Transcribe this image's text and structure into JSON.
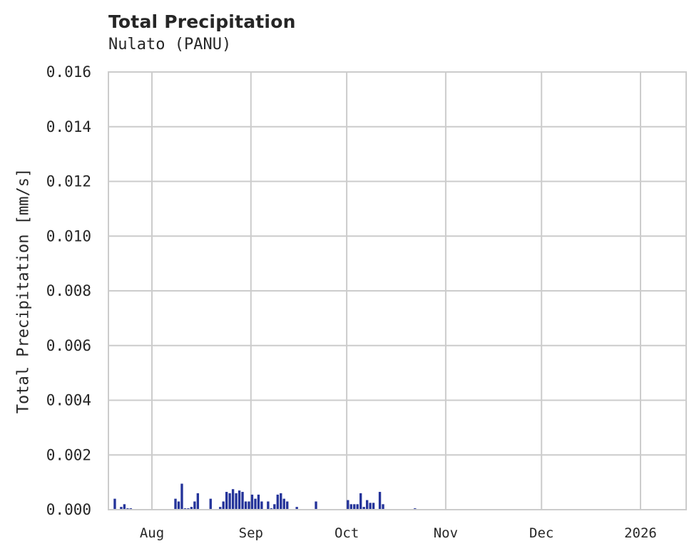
{
  "chart": {
    "title": "Total Precipitation",
    "subtitle": "Nulato (PANU)",
    "ylabel": "Total Precipitation [mm/s]",
    "xlabel": ""
  },
  "colors": {
    "bar": "#25349a",
    "grid": "#cccccc",
    "spine": "#cccccc",
    "text": "#262626"
  },
  "chart_data": {
    "type": "bar",
    "title": "Total Precipitation",
    "subtitle": "Nulato (PANU)",
    "xlabel": "",
    "ylabel": "Total Precipitation [mm/s]",
    "ylim": [
      0.0,
      0.016
    ],
    "yticks": [
      "0.000",
      "0.002",
      "0.004",
      "0.006",
      "0.008",
      "0.010",
      "0.012",
      "0.014",
      "0.016"
    ],
    "xticks": [
      "Aug",
      "Sep",
      "Oct",
      "Nov",
      "Dec",
      "2026"
    ],
    "xrange": [
      "2025-07-17",
      "2026-01-15"
    ],
    "grid": true,
    "legend": null,
    "series": [
      {
        "name": "Total Precipitation",
        "color": "#25349a",
        "points": [
          {
            "date": "2025-07-20",
            "value": 0.0004
          },
          {
            "date": "2025-07-22",
            "value": 0.0001
          },
          {
            "date": "2025-07-23",
            "value": 0.0002
          },
          {
            "date": "2025-07-24",
            "value": 5e-05
          },
          {
            "date": "2025-07-25",
            "value": 5e-05
          },
          {
            "date": "2025-08-08",
            "value": 0.0004
          },
          {
            "date": "2025-08-09",
            "value": 0.0003
          },
          {
            "date": "2025-08-10",
            "value": 0.00095
          },
          {
            "date": "2025-08-11",
            "value": 5e-05
          },
          {
            "date": "2025-08-12",
            "value": 5e-05
          },
          {
            "date": "2025-08-13",
            "value": 0.0001
          },
          {
            "date": "2025-08-14",
            "value": 0.0003
          },
          {
            "date": "2025-08-15",
            "value": 0.0006
          },
          {
            "date": "2025-08-19",
            "value": 0.0004
          },
          {
            "date": "2025-08-22",
            "value": 0.0001
          },
          {
            "date": "2025-08-23",
            "value": 0.0003
          },
          {
            "date": "2025-08-24",
            "value": 0.00065
          },
          {
            "date": "2025-08-25",
            "value": 0.0006
          },
          {
            "date": "2025-08-26",
            "value": 0.00075
          },
          {
            "date": "2025-08-27",
            "value": 0.0006
          },
          {
            "date": "2025-08-28",
            "value": 0.0007
          },
          {
            "date": "2025-08-29",
            "value": 0.00065
          },
          {
            "date": "2025-08-30",
            "value": 0.0003
          },
          {
            "date": "2025-08-31",
            "value": 0.0003
          },
          {
            "date": "2025-09-01",
            "value": 0.00055
          },
          {
            "date": "2025-09-02",
            "value": 0.0004
          },
          {
            "date": "2025-09-03",
            "value": 0.00055
          },
          {
            "date": "2025-09-04",
            "value": 0.0003
          },
          {
            "date": "2025-09-06",
            "value": 0.0003
          },
          {
            "date": "2025-09-07",
            "value": 5e-05
          },
          {
            "date": "2025-09-08",
            "value": 0.0002
          },
          {
            "date": "2025-09-09",
            "value": 0.00055
          },
          {
            "date": "2025-09-10",
            "value": 0.0006
          },
          {
            "date": "2025-09-11",
            "value": 0.0004
          },
          {
            "date": "2025-09-12",
            "value": 0.0003
          },
          {
            "date": "2025-09-15",
            "value": 0.0001
          },
          {
            "date": "2025-09-21",
            "value": 0.0003
          },
          {
            "date": "2025-10-01",
            "value": 0.00035
          },
          {
            "date": "2025-10-02",
            "value": 0.0002
          },
          {
            "date": "2025-10-03",
            "value": 0.0002
          },
          {
            "date": "2025-10-04",
            "value": 0.0002
          },
          {
            "date": "2025-10-05",
            "value": 0.0006
          },
          {
            "date": "2025-10-06",
            "value": 0.0001
          },
          {
            "date": "2025-10-07",
            "value": 0.00035
          },
          {
            "date": "2025-10-08",
            "value": 0.00025
          },
          {
            "date": "2025-10-09",
            "value": 0.00025
          },
          {
            "date": "2025-10-11",
            "value": 0.00065
          },
          {
            "date": "2025-10-12",
            "value": 0.0002
          },
          {
            "date": "2025-10-22",
            "value": 5e-05
          }
        ]
      }
    ]
  }
}
